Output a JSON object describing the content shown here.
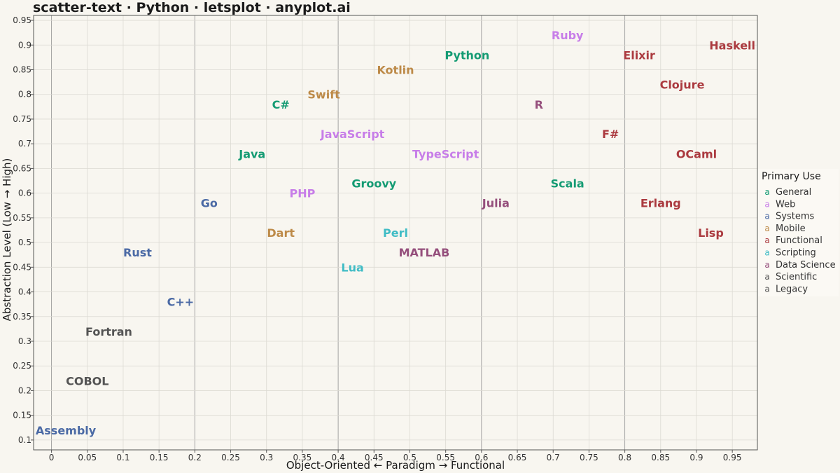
{
  "chart_data": {
    "type": "scatter",
    "title": "scatter-text · Python · letsplot · anyplot.ai",
    "xlabel": "Object-Oriented ← Paradigm → Functional",
    "ylabel": "Abstraction Level (Low → High)",
    "xlim": [
      -0.025,
      0.985
    ],
    "ylim": [
      0.08,
      0.96
    ],
    "x_ticks": [
      0,
      0.05,
      0.1,
      0.15,
      0.2,
      0.25,
      0.3,
      0.35,
      0.4,
      0.45,
      0.5,
      0.55,
      0.6,
      0.65,
      0.7,
      0.75,
      0.8,
      0.85,
      0.9,
      0.95
    ],
    "y_ticks": [
      0.1,
      0.15,
      0.2,
      0.25,
      0.3,
      0.35,
      0.4,
      0.45,
      0.5,
      0.55,
      0.6,
      0.65,
      0.7,
      0.75,
      0.8,
      0.85,
      0.9,
      0.95
    ],
    "x_tick_labels": [
      "0",
      "0.05",
      "0.1",
      "0.15",
      "0.2",
      "0.25",
      "0.3",
      "0.35",
      "0.4",
      "0.45",
      "0.5",
      "0.55",
      "0.6",
      "0.65",
      "0.7",
      "0.75",
      "0.8",
      "0.85",
      "0.9",
      "0.95"
    ],
    "y_tick_labels": [
      "0.1",
      "0.15",
      "0.2",
      "0.25",
      "0.3",
      "0.35",
      "0.4",
      "0.45",
      "0.5",
      "0.55",
      "0.6",
      "0.65",
      "0.7",
      "0.75",
      "0.8",
      "0.85",
      "0.9",
      "0.95"
    ],
    "grid": true,
    "legend": {
      "title": "Primary Use",
      "placement": "right",
      "key_glyph": "a",
      "entries": [
        {
          "name": "General",
          "color": "#149b73"
        },
        {
          "name": "Web",
          "color": "#c77de8"
        },
        {
          "name": "Systems",
          "color": "#4b6aa5"
        },
        {
          "name": "Mobile",
          "color": "#bd8a48"
        },
        {
          "name": "Functional",
          "color": "#ab3a3f"
        },
        {
          "name": "Scripting",
          "color": "#3fbcc5"
        },
        {
          "name": "Data Science",
          "color": "#954f7c"
        },
        {
          "name": "Scientific",
          "color": "#545454"
        },
        {
          "name": "Legacy",
          "color": "#545454"
        }
      ]
    },
    "points": [
      {
        "label": "Assembly",
        "x": 0.02,
        "y": 0.12,
        "category": "Systems"
      },
      {
        "label": "COBOL",
        "x": 0.05,
        "y": 0.22,
        "category": "Legacy"
      },
      {
        "label": "Fortran",
        "x": 0.08,
        "y": 0.32,
        "category": "Scientific"
      },
      {
        "label": "C++",
        "x": 0.18,
        "y": 0.38,
        "category": "Systems"
      },
      {
        "label": "Rust",
        "x": 0.12,
        "y": 0.48,
        "category": "Systems"
      },
      {
        "label": "Go",
        "x": 0.22,
        "y": 0.58,
        "category": "Systems"
      },
      {
        "label": "Java",
        "x": 0.28,
        "y": 0.68,
        "category": "General"
      },
      {
        "label": "C#",
        "x": 0.32,
        "y": 0.78,
        "category": "General"
      },
      {
        "label": "Swift",
        "x": 0.38,
        "y": 0.8,
        "category": "Mobile"
      },
      {
        "label": "Dart",
        "x": 0.32,
        "y": 0.52,
        "category": "Mobile"
      },
      {
        "label": "PHP",
        "x": 0.35,
        "y": 0.6,
        "category": "Web"
      },
      {
        "label": "JavaScript",
        "x": 0.42,
        "y": 0.72,
        "category": "Web"
      },
      {
        "label": "Lua",
        "x": 0.42,
        "y": 0.45,
        "category": "Scripting"
      },
      {
        "label": "Groovy",
        "x": 0.45,
        "y": 0.62,
        "category": "General"
      },
      {
        "label": "Kotlin",
        "x": 0.48,
        "y": 0.85,
        "category": "Mobile"
      },
      {
        "label": "Perl",
        "x": 0.48,
        "y": 0.52,
        "category": "Scripting"
      },
      {
        "label": "MATLAB",
        "x": 0.52,
        "y": 0.48,
        "category": "Data Science"
      },
      {
        "label": "TypeScript",
        "x": 0.55,
        "y": 0.68,
        "category": "Web"
      },
      {
        "label": "Python",
        "x": 0.58,
        "y": 0.88,
        "category": "General"
      },
      {
        "label": "Julia",
        "x": 0.62,
        "y": 0.58,
        "category": "Data Science"
      },
      {
        "label": "R",
        "x": 0.68,
        "y": 0.78,
        "category": "Data Science"
      },
      {
        "label": "Ruby",
        "x": 0.72,
        "y": 0.92,
        "category": "Web"
      },
      {
        "label": "Scala",
        "x": 0.72,
        "y": 0.62,
        "category": "General"
      },
      {
        "label": "F#",
        "x": 0.78,
        "y": 0.72,
        "category": "Functional"
      },
      {
        "label": "Elixir",
        "x": 0.82,
        "y": 0.88,
        "category": "Functional"
      },
      {
        "label": "Erlang",
        "x": 0.85,
        "y": 0.58,
        "category": "Functional"
      },
      {
        "label": "Clojure",
        "x": 0.88,
        "y": 0.82,
        "category": "Functional"
      },
      {
        "label": "OCaml",
        "x": 0.9,
        "y": 0.68,
        "category": "Functional"
      },
      {
        "label": "Lisp",
        "x": 0.92,
        "y": 0.52,
        "category": "Functional"
      },
      {
        "label": "Haskell",
        "x": 0.95,
        "y": 0.9,
        "category": "Functional"
      }
    ]
  }
}
